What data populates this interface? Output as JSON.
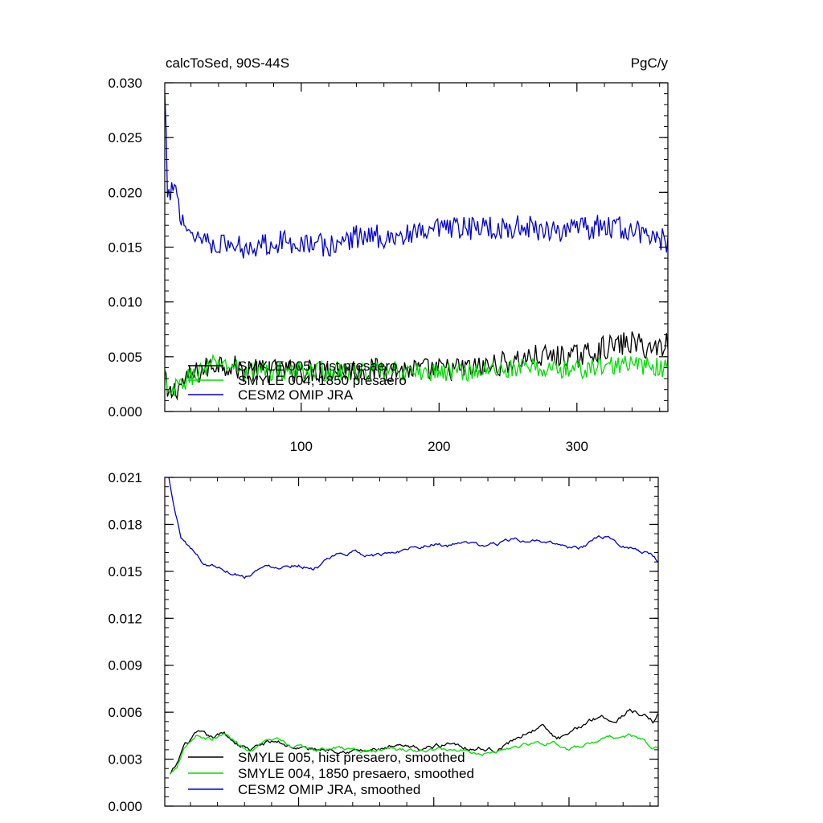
{
  "chart_data": [
    {
      "type": "line",
      "title_left": "calcToSed, 90S-44S",
      "title_right": "PgC/y",
      "xlabel": "",
      "ylabel": "",
      "xlim": [
        1,
        366
      ],
      "ylim": [
        0.0,
        0.03
      ],
      "x_ticks": [
        100,
        200,
        300
      ],
      "x_tick_labels": [
        "100",
        "200",
        "300"
      ],
      "y_ticks": [
        0.0,
        0.005,
        0.01,
        0.015,
        0.02,
        0.025,
        0.03
      ],
      "y_tick_labels": [
        "0.000",
        "0.005",
        "0.010",
        "0.015",
        "0.020",
        "0.025",
        "0.030"
      ],
      "legend_placement": "bottom-left",
      "series": [
        {
          "name": "SMYLE 005, hist presaero",
          "color": "#000000",
          "noise": 0.0011,
          "points": [
            [
              1,
              0.0035
            ],
            [
              3,
              0.0013
            ],
            [
              10,
              0.0022
            ],
            [
              20,
              0.0032
            ],
            [
              40,
              0.0045
            ],
            [
              60,
              0.0037
            ],
            [
              100,
              0.0037
            ],
            [
              150,
              0.0038
            ],
            [
              200,
              0.0038
            ],
            [
              230,
              0.004
            ],
            [
              250,
              0.0045
            ],
            [
              270,
              0.005
            ],
            [
              300,
              0.005
            ],
            [
              320,
              0.0058
            ],
            [
              340,
              0.0063
            ],
            [
              355,
              0.0057
            ],
            [
              366,
              0.0063
            ]
          ]
        },
        {
          "name": "SMYLE 004, 1850 presaero",
          "color": "#00dd00",
          "noise": 0.0009,
          "points": [
            [
              1,
              0.0035
            ],
            [
              3,
              0.0013
            ],
            [
              10,
              0.0022
            ],
            [
              20,
              0.0032
            ],
            [
              40,
              0.0045
            ],
            [
              60,
              0.0037
            ],
            [
              100,
              0.0037
            ],
            [
              150,
              0.0036
            ],
            [
              200,
              0.0036
            ],
            [
              230,
              0.0037
            ],
            [
              260,
              0.004
            ],
            [
              300,
              0.0038
            ],
            [
              330,
              0.0043
            ],
            [
              366,
              0.004
            ]
          ]
        },
        {
          "name": "CESM2 OMIP JRA",
          "color": "#0000cc",
          "noise": 0.0011,
          "points": [
            [
              1,
              0.0288
            ],
            [
              2,
              0.0255
            ],
            [
              3,
              0.0185
            ],
            [
              5,
              0.02
            ],
            [
              7,
              0.021
            ],
            [
              10,
              0.0195
            ],
            [
              15,
              0.017
            ],
            [
              25,
              0.016
            ],
            [
              40,
              0.0153
            ],
            [
              60,
              0.015
            ],
            [
              80,
              0.0155
            ],
            [
              100,
              0.0155
            ],
            [
              120,
              0.015
            ],
            [
              140,
              0.016
            ],
            [
              160,
              0.016
            ],
            [
              180,
              0.016
            ],
            [
              200,
              0.0165
            ],
            [
              230,
              0.0168
            ],
            [
              260,
              0.0168
            ],
            [
              300,
              0.0165
            ],
            [
              320,
              0.017
            ],
            [
              340,
              0.0165
            ],
            [
              366,
              0.0155
            ]
          ]
        }
      ]
    },
    {
      "type": "line",
      "xlabel": "",
      "ylabel": "",
      "xlim": [
        1,
        366
      ],
      "ylim": [
        0.0,
        0.021
      ],
      "x_ticks": [
        100,
        200,
        300
      ],
      "y_ticks": [
        0.0,
        0.003,
        0.006,
        0.009,
        0.012,
        0.015,
        0.018,
        0.021
      ],
      "y_tick_labels": [
        "0.000",
        "0.003",
        "0.006",
        "0.009",
        "0.012",
        "0.015",
        "0.018",
        "0.021"
      ],
      "legend_placement": "bottom-left",
      "series": [
        {
          "name": "SMYLE 005, hist presaero, smoothed",
          "color": "#000000",
          "noise": 0.00022,
          "points": [
            [
              5,
              0.002
            ],
            [
              10,
              0.0026
            ],
            [
              15,
              0.0038
            ],
            [
              25,
              0.0046
            ],
            [
              35,
              0.0043
            ],
            [
              45,
              0.0046
            ],
            [
              55,
              0.004
            ],
            [
              65,
              0.0036
            ],
            [
              75,
              0.004
            ],
            [
              85,
              0.0041
            ],
            [
              95,
              0.0038
            ],
            [
              110,
              0.0036
            ],
            [
              130,
              0.0037
            ],
            [
              150,
              0.0035
            ],
            [
              170,
              0.0037
            ],
            [
              190,
              0.0036
            ],
            [
              205,
              0.0039
            ],
            [
              215,
              0.0041
            ],
            [
              225,
              0.0038
            ],
            [
              235,
              0.0037
            ],
            [
              245,
              0.0036
            ],
            [
              255,
              0.004
            ],
            [
              270,
              0.0048
            ],
            [
              280,
              0.0051
            ],
            [
              290,
              0.0043
            ],
            [
              300,
              0.0044
            ],
            [
              315,
              0.0055
            ],
            [
              325,
              0.0058
            ],
            [
              335,
              0.0054
            ],
            [
              345,
              0.0062
            ],
            [
              355,
              0.0058
            ],
            [
              362,
              0.0054
            ],
            [
              366,
              0.006
            ]
          ]
        },
        {
          "name": "SMYLE 004, 1850 presaero, smoothed",
          "color": "#00dd00",
          "noise": 0.00018,
          "points": [
            [
              5,
              0.002
            ],
            [
              10,
              0.0026
            ],
            [
              15,
              0.0038
            ],
            [
              25,
              0.0046
            ],
            [
              35,
              0.0043
            ],
            [
              45,
              0.0046
            ],
            [
              55,
              0.004
            ],
            [
              65,
              0.0036
            ],
            [
              75,
              0.004
            ],
            [
              85,
              0.0041
            ],
            [
              95,
              0.0038
            ],
            [
              110,
              0.0036
            ],
            [
              130,
              0.0037
            ],
            [
              150,
              0.0035
            ],
            [
              170,
              0.0036
            ],
            [
              190,
              0.0035
            ],
            [
              205,
              0.0036
            ],
            [
              220,
              0.0036
            ],
            [
              240,
              0.0034
            ],
            [
              255,
              0.0037
            ],
            [
              270,
              0.004
            ],
            [
              290,
              0.0041
            ],
            [
              300,
              0.0036
            ],
            [
              315,
              0.0039
            ],
            [
              330,
              0.0043
            ],
            [
              345,
              0.0045
            ],
            [
              355,
              0.0042
            ],
            [
              362,
              0.0036
            ],
            [
              366,
              0.0038
            ]
          ]
        },
        {
          "name": "CESM2 OMIP JRA, smoothed",
          "color": "#0000cc",
          "noise": 0.00018,
          "points": [
            [
              4,
              0.021
            ],
            [
              8,
              0.019
            ],
            [
              13,
              0.0172
            ],
            [
              20,
              0.0165
            ],
            [
              30,
              0.0155
            ],
            [
              40,
              0.0153
            ],
            [
              50,
              0.015
            ],
            [
              60,
              0.0147
            ],
            [
              70,
              0.0152
            ],
            [
              80,
              0.0153
            ],
            [
              90,
              0.0154
            ],
            [
              100,
              0.0155
            ],
            [
              110,
              0.0152
            ],
            [
              120,
              0.0156
            ],
            [
              130,
              0.016
            ],
            [
              140,
              0.0162
            ],
            [
              150,
              0.0161
            ],
            [
              160,
              0.016
            ],
            [
              170,
              0.0162
            ],
            [
              180,
              0.0165
            ],
            [
              190,
              0.0167
            ],
            [
              200,
              0.0168
            ],
            [
              210,
              0.0166
            ],
            [
              220,
              0.0168
            ],
            [
              235,
              0.0166
            ],
            [
              250,
              0.0168
            ],
            [
              260,
              0.0171
            ],
            [
              270,
              0.0167
            ],
            [
              280,
              0.0169
            ],
            [
              290,
              0.0168
            ],
            [
              300,
              0.0165
            ],
            [
              310,
              0.0165
            ],
            [
              320,
              0.017
            ],
            [
              330,
              0.0172
            ],
            [
              340,
              0.0167
            ],
            [
              350,
              0.0164
            ],
            [
              360,
              0.0162
            ],
            [
              366,
              0.0156
            ]
          ]
        }
      ]
    }
  ]
}
